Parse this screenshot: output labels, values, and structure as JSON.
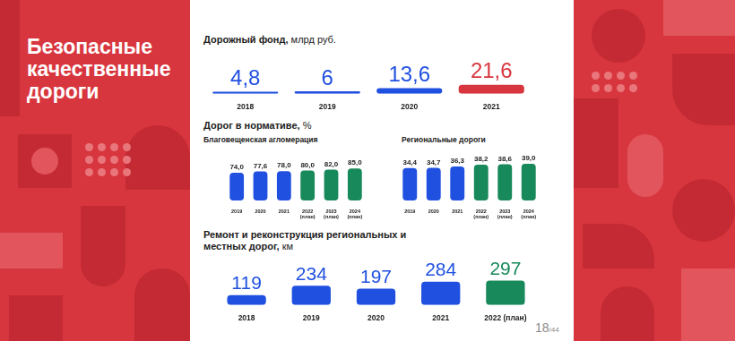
{
  "heading": "Безопасные качественные дороги",
  "page": "18/44",
  "chart_data": [
    {
      "type": "bar",
      "title": "Дорожный фонд, млрд руб.",
      "categories": [
        "2018",
        "2019",
        "2020",
        "2021"
      ],
      "values": [
        4.8,
        6,
        13.6,
        21.6
      ],
      "value_labels": [
        "4,8",
        "6",
        "13,6",
        "21,6"
      ],
      "colors": [
        "#2050e0",
        "#2050e0",
        "#2050e0",
        "#d8363e"
      ],
      "data_labels": true,
      "grid": false,
      "tick_labels": "x"
    },
    {
      "type": "bar",
      "title": "Дорог в нормативе, %",
      "subtitle": "Благовещенская агломерация",
      "categories": [
        "2019",
        "2020",
        "2021",
        "2022 (план)",
        "2023 (план)",
        "2024 (план)"
      ],
      "values": [
        74.0,
        77.6,
        78.0,
        80.0,
        82.0,
        85.0
      ],
      "value_labels": [
        "74,0",
        "77,6",
        "78,0",
        "80,0",
        "82,0",
        "85,0"
      ],
      "colors": [
        "#2050e0",
        "#2050e0",
        "#2050e0",
        "#18895a",
        "#18895a",
        "#18895a"
      ],
      "data_labels": true,
      "grid": false,
      "tick_labels": "x"
    },
    {
      "type": "bar",
      "subtitle": "Региональные дороги",
      "categories": [
        "2019",
        "2020",
        "2021",
        "2022 (план)",
        "2023 (план)",
        "2024 (план)"
      ],
      "values": [
        34.4,
        34.7,
        36.3,
        38.2,
        38.6,
        39.0
      ],
      "value_labels": [
        "34,4",
        "34,7",
        "36,3",
        "38,2",
        "38,6",
        "39,0"
      ],
      "colors": [
        "#2050e0",
        "#2050e0",
        "#2050e0",
        "#18895a",
        "#18895a",
        "#18895a"
      ],
      "data_labels": true,
      "grid": false,
      "tick_labels": "x"
    },
    {
      "type": "bar",
      "title": "Ремонт и реконструкция региональных и местных дорог, км",
      "categories": [
        "2018",
        "2019",
        "2020",
        "2021",
        "2022 (план)"
      ],
      "values": [
        119,
        234,
        197,
        284,
        297
      ],
      "colors": [
        "#2050e0",
        "#2050e0",
        "#2050e0",
        "#2050e0",
        "#18895a"
      ],
      "data_labels": true,
      "grid": false,
      "tick_labels": "x"
    }
  ]
}
